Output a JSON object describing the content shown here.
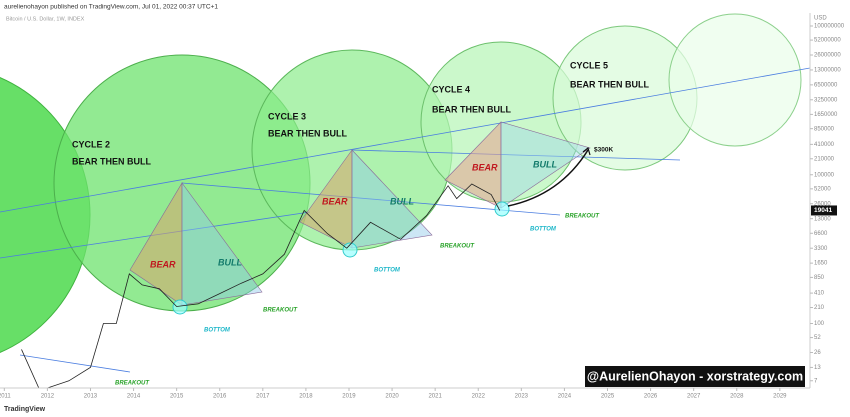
{
  "header": "aurelienohayon published on TradingView.com, Jul 01, 2022 00:37 UTC+1",
  "watermark": "@AurelienOhayon - xorstrategy.com",
  "brand": "TradingView",
  "chart_data": {
    "type": "line",
    "title": "Bitcoin / U.S. Dollar, 1W, INDEX",
    "y_label": "USD",
    "log_scale": true,
    "x": [
      2011.4,
      2011.8,
      2012.0,
      2012.5,
      2013.0,
      2013.3,
      2013.6,
      2013.9,
      2014.2,
      2014.6,
      2015.0,
      2015.5,
      2016.0,
      2016.5,
      2017.0,
      2017.5,
      2017.96,
      2018.5,
      2018.95,
      2019.5,
      2020.2,
      2020.8,
      2021.3,
      2021.5,
      2021.85,
      2022.3,
      2022.5
    ],
    "values": [
      30,
      5,
      5,
      7,
      13,
      100,
      100,
      1000,
      600,
      500,
      220,
      250,
      400,
      650,
      1000,
      2500,
      19000,
      6500,
      3300,
      11000,
      5000,
      15000,
      60000,
      33000,
      65000,
      40000,
      19041
    ],
    "color": "#222222",
    "last_price": 19041,
    "xlim": [
      2010.9,
      2029.7
    ],
    "xticks": [
      2011,
      2012,
      2013,
      2014,
      2015,
      2016,
      2017,
      2018,
      2019,
      2020,
      2021,
      2022,
      2023,
      2024,
      2025,
      2026,
      2027,
      2028,
      2029
    ],
    "ylim": [
      5,
      183000000
    ],
    "yticks": [
      100000000,
      52000000,
      26000000,
      13000000,
      6500000,
      3250000,
      1650000,
      850000,
      410000,
      210000,
      100000,
      52000,
      26000,
      13000,
      6600,
      3300,
      1650,
      850,
      410,
      210,
      100,
      52,
      26,
      13,
      7
    ],
    "annotations": [
      "CYCLE 2",
      "BEAR THEN BULL",
      "CYCLE 3",
      "BEAR THEN BULL",
      "CYCLE 4",
      "BEAR THEN BULL",
      "CYCLE 5",
      "BEAR THEN BULL",
      "BEAR",
      "BULL",
      "BEAR",
      "BULL",
      "BEAR",
      "BULL",
      "BOTTOM",
      "BOTTOM",
      "BOTTOM",
      "BREAKOUT",
      "BREAKOUT",
      "BREAKOUT",
      "BREAKOUT",
      "$300K"
    ]
  }
}
